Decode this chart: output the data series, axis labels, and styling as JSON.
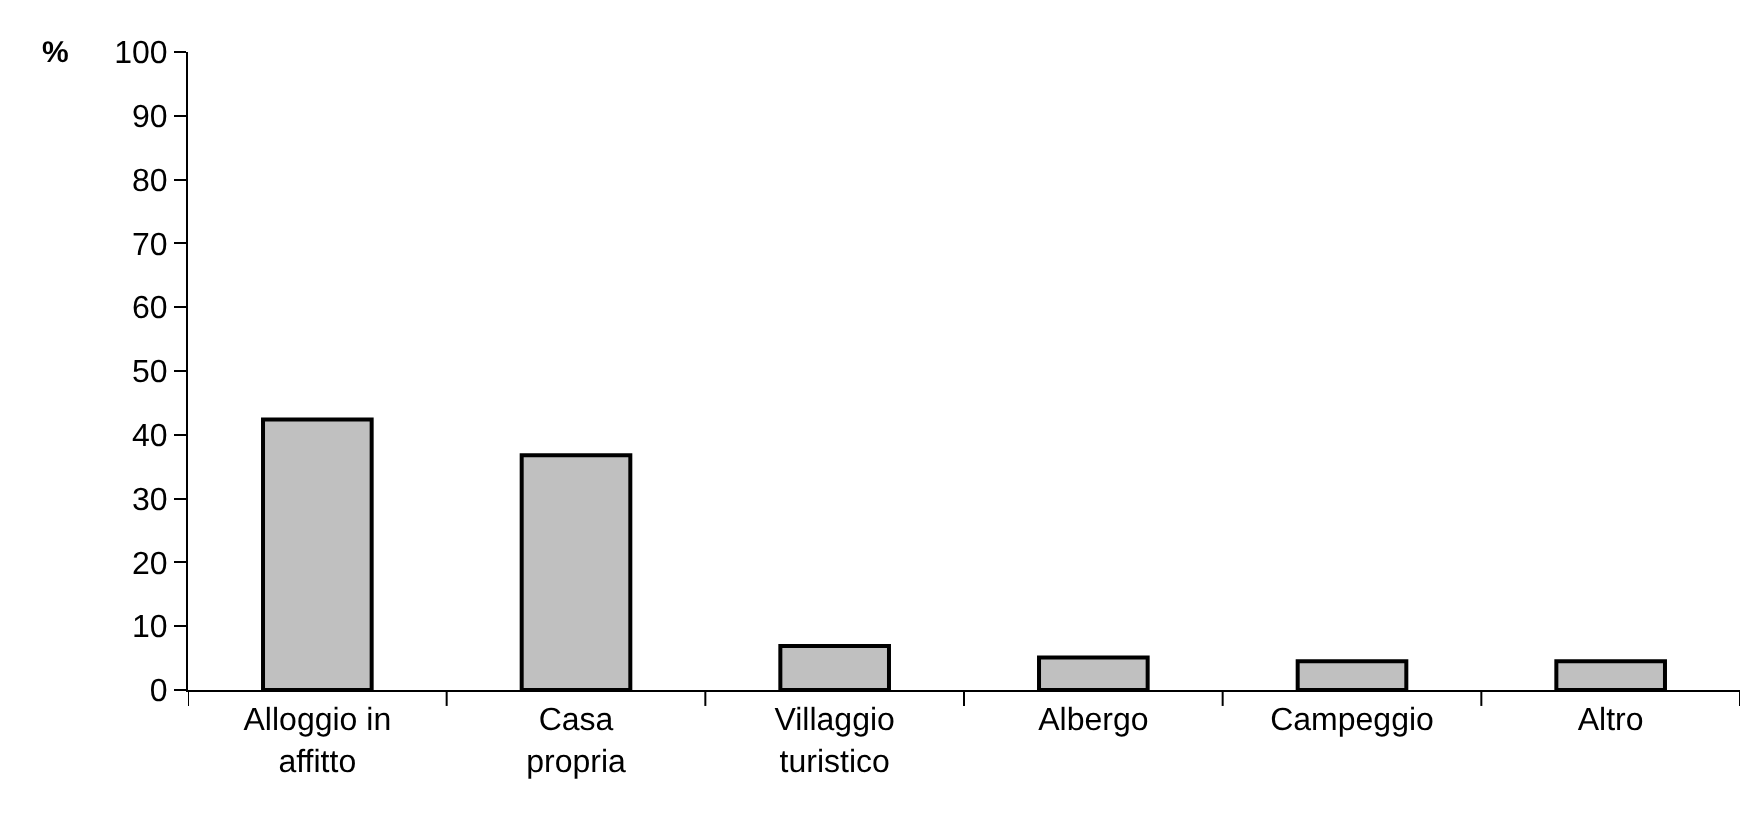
{
  "chart_data": {
    "type": "bar",
    "ylabel": "%",
    "categories": [
      "Alloggio in\naffitto",
      "Casa\npropria",
      "Villaggio\nturistico",
      "Albergo",
      "Campeggio",
      "Altro"
    ],
    "values": [
      42.4,
      36.8,
      6.9,
      5.1,
      4.5,
      4.5
    ],
    "color": "#c0c0c0",
    "ylim": [
      0,
      100
    ],
    "yticks": [
      0,
      10,
      20,
      30,
      40,
      50,
      60,
      70,
      80,
      90,
      100
    ]
  }
}
